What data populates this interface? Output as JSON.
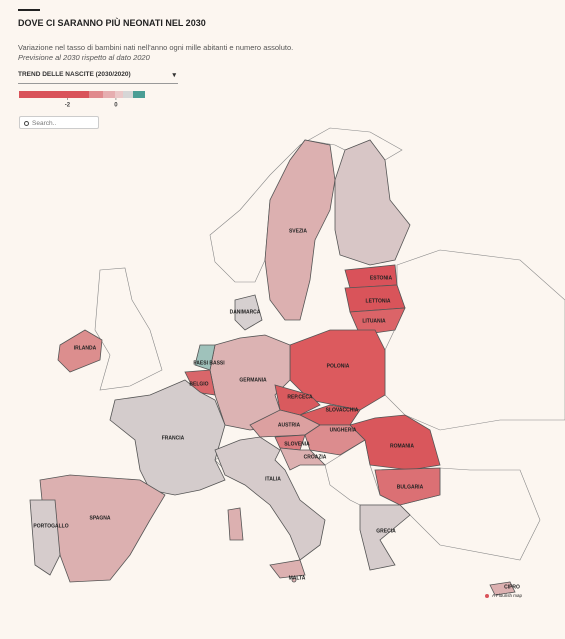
{
  "header": {
    "title": "DOVE CI SARANNO PIÙ NEONATI NEL 2030",
    "subtitle": "Variazione nel tasso di bambini nati nell'anno ogni mille abitanti e numero assoluto.",
    "note": "Previsione al 2030 rispetto al dato 2020"
  },
  "controls": {
    "dropdown": "TREND DELLE NASCITE (2030/2020)",
    "search_placeholder": "Search.."
  },
  "legend": {
    "xlim": [
      -4,
      1.2
    ],
    "xticks": [
      -2,
      0
    ]
  },
  "map": {
    "labels": [
      "SVEZIA",
      "ESTONIA",
      "LETTONIA",
      "LITUANIA",
      "DANIMARCA",
      "IRLANDA",
      "POLONIA",
      "PAESI BASSI",
      "BELGIO",
      "GERMANIA",
      "REP.CECA",
      "SLOVACCHIA",
      "AUSTRIA",
      "UNGHERIA",
      "ROMANIA",
      "SLOVENIA",
      "CROAZIA",
      "FRANCIA",
      "BULGARIA",
      "ITALIA",
      "SPAGNA",
      "PORTOGALLO",
      "GRECIA",
      "MALTA",
      "CIPRO"
    ]
  },
  "footer": {
    "credit": "A Flourish map"
  }
}
